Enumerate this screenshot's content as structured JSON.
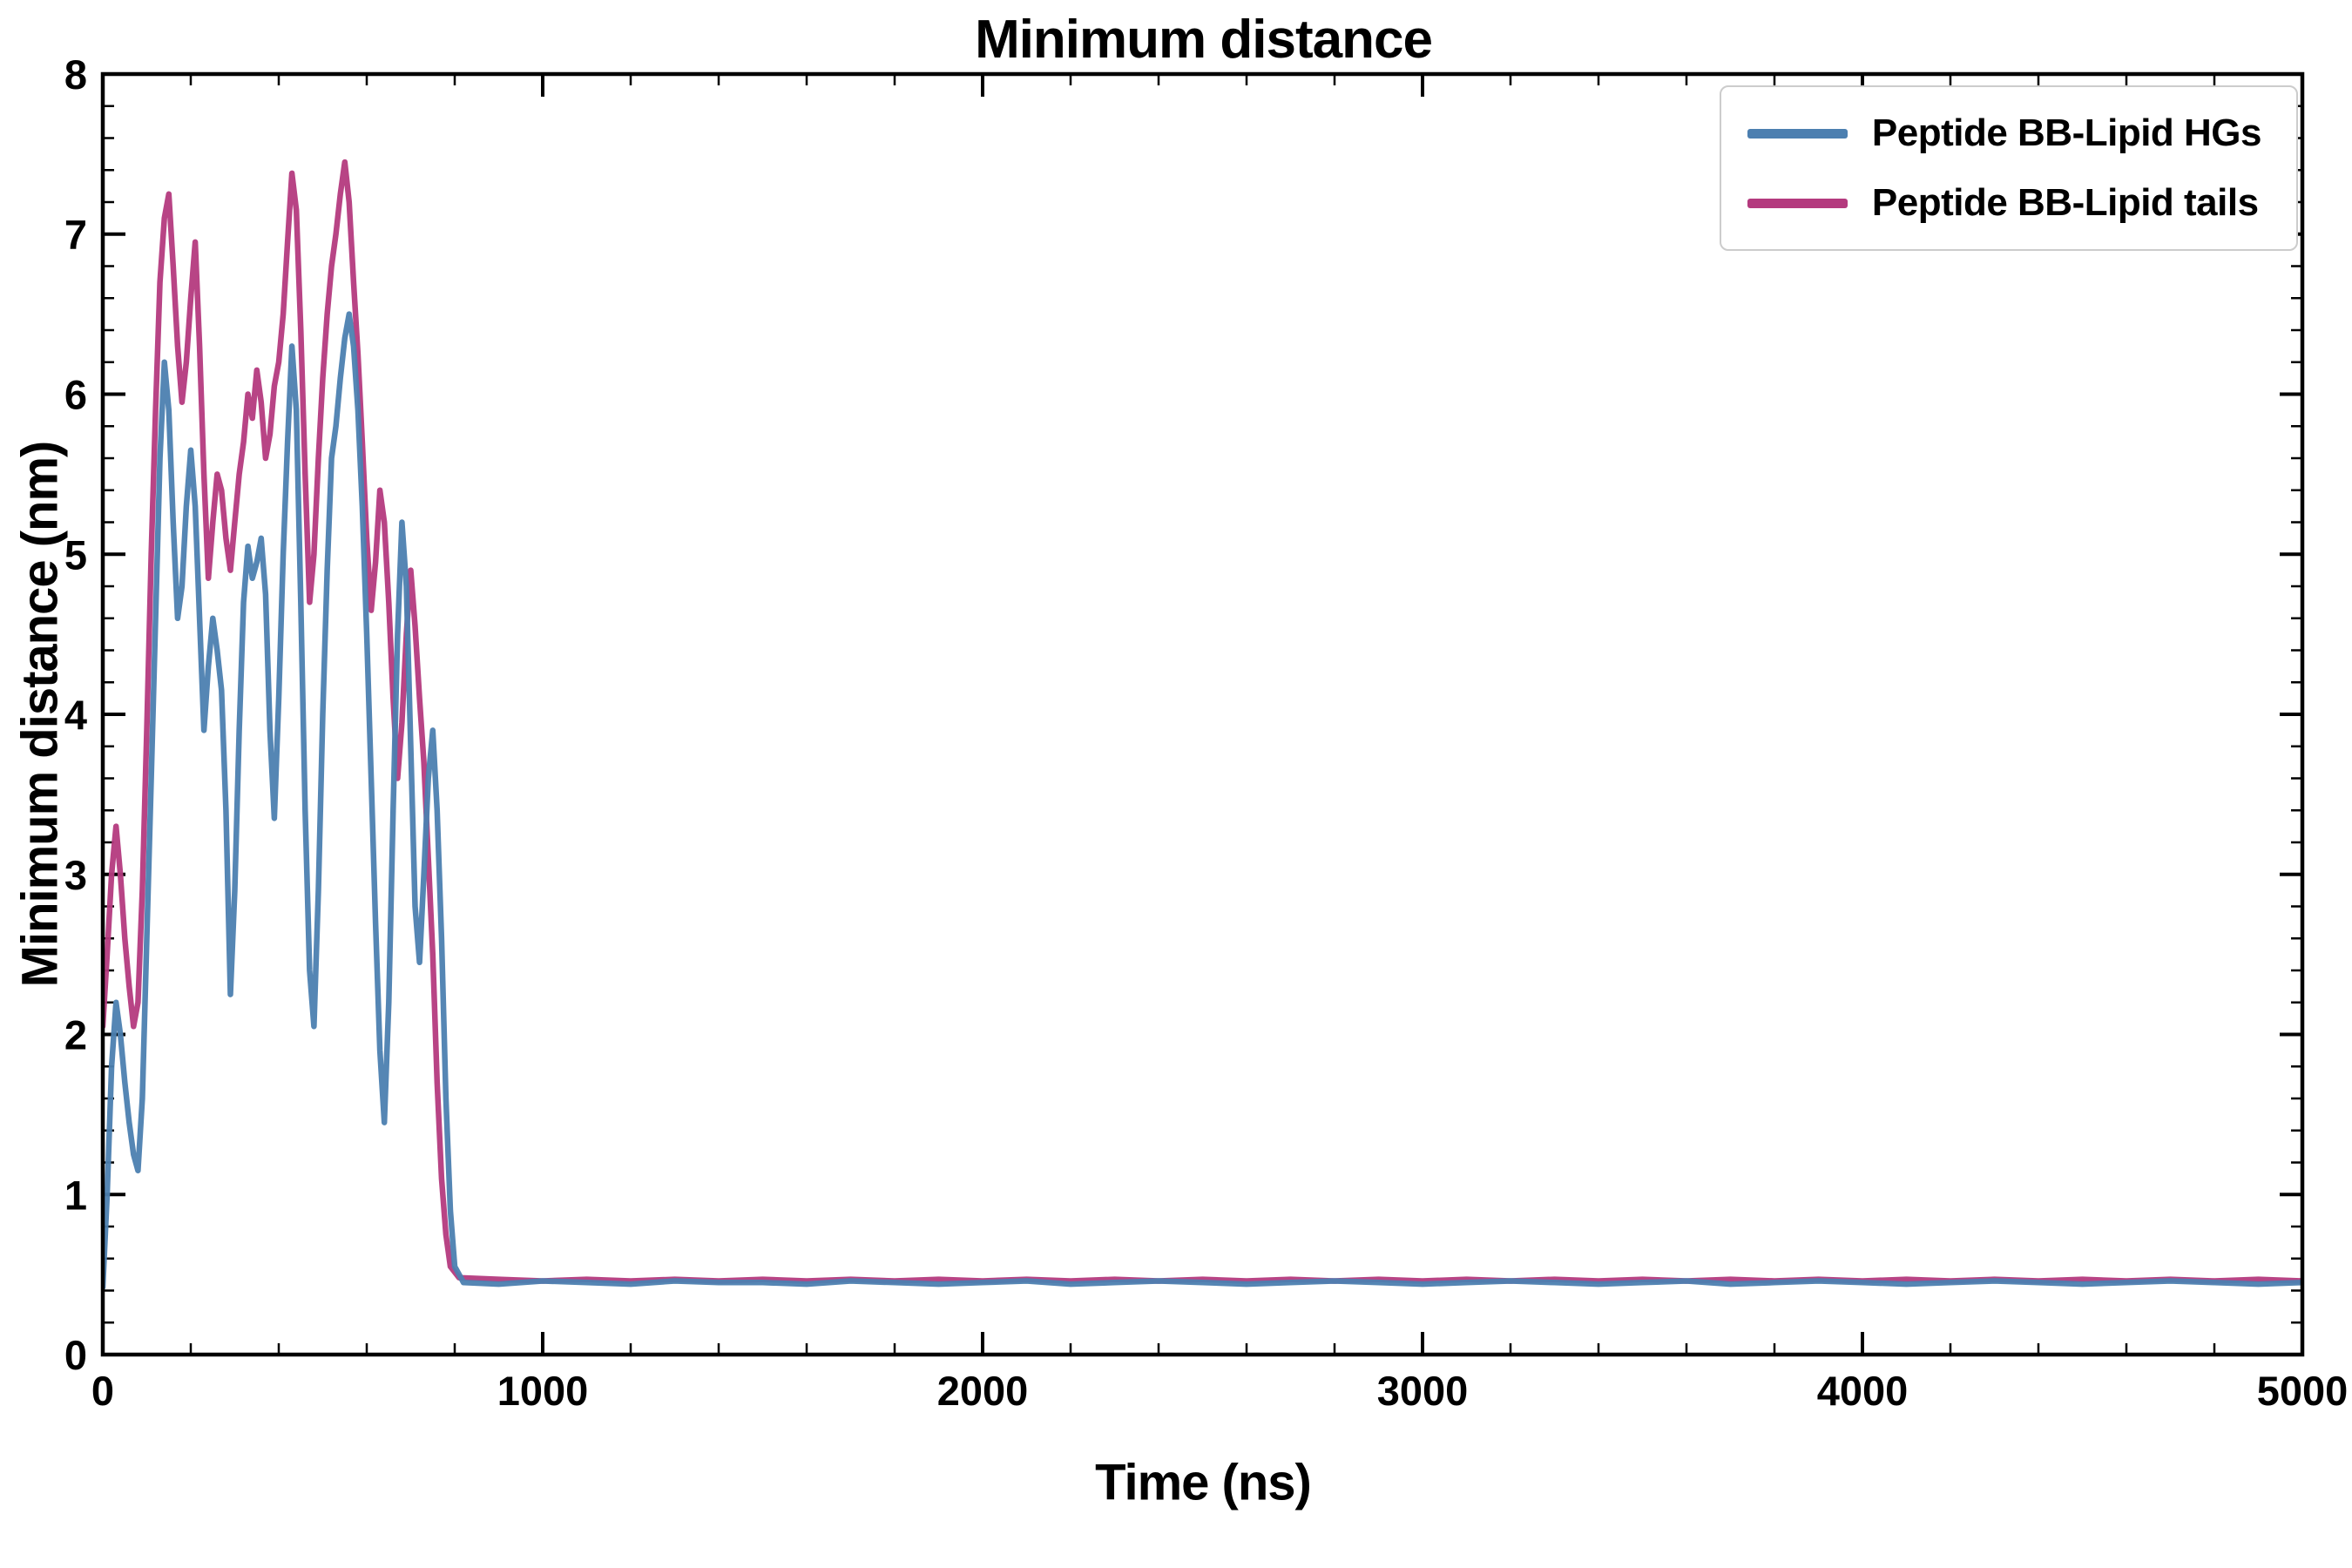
{
  "chart_data": {
    "type": "line",
    "title": "Minimum distance",
    "xlabel": "Time (ns)",
    "ylabel": "Minimum distance (nm)",
    "xlim": [
      0,
      5000
    ],
    "ylim": [
      0,
      8
    ],
    "x_major_ticks": [
      0,
      1000,
      2000,
      3000,
      4000,
      5000
    ],
    "y_major_ticks": [
      0,
      1,
      2,
      3,
      4,
      5,
      6,
      7,
      8
    ],
    "x_minor_step": 200,
    "y_minor_step": 0.2,
    "grid": false,
    "legend_position": "upper right",
    "frame_color": "#000000",
    "series": [
      {
        "name": "Peptide BB-Lipid HGs",
        "color": "#4c7fb0",
        "points": [
          [
            0,
            0.42
          ],
          [
            10,
            1.0
          ],
          [
            20,
            1.8
          ],
          [
            30,
            2.2
          ],
          [
            40,
            2.0
          ],
          [
            50,
            1.7
          ],
          [
            60,
            1.45
          ],
          [
            70,
            1.25
          ],
          [
            80,
            1.15
          ],
          [
            90,
            1.6
          ],
          [
            100,
            2.6
          ],
          [
            110,
            3.6
          ],
          [
            120,
            4.6
          ],
          [
            130,
            5.6
          ],
          [
            140,
            6.2
          ],
          [
            150,
            5.9
          ],
          [
            160,
            5.2
          ],
          [
            170,
            4.6
          ],
          [
            180,
            4.8
          ],
          [
            190,
            5.3
          ],
          [
            200,
            5.65
          ],
          [
            210,
            5.3
          ],
          [
            220,
            4.6
          ],
          [
            230,
            3.9
          ],
          [
            240,
            4.3
          ],
          [
            250,
            4.6
          ],
          [
            260,
            4.4
          ],
          [
            270,
            4.15
          ],
          [
            280,
            3.4
          ],
          [
            290,
            2.25
          ],
          [
            300,
            2.9
          ],
          [
            310,
            3.9
          ],
          [
            320,
            4.7
          ],
          [
            330,
            5.05
          ],
          [
            340,
            4.85
          ],
          [
            350,
            4.95
          ],
          [
            360,
            5.1
          ],
          [
            370,
            4.75
          ],
          [
            380,
            3.9
          ],
          [
            390,
            3.35
          ],
          [
            400,
            4.1
          ],
          [
            410,
            5.0
          ],
          [
            420,
            5.7
          ],
          [
            430,
            6.3
          ],
          [
            440,
            5.9
          ],
          [
            450,
            4.7
          ],
          [
            460,
            3.4
          ],
          [
            470,
            2.4
          ],
          [
            480,
            2.05
          ],
          [
            490,
            2.9
          ],
          [
            500,
            4.0
          ],
          [
            510,
            4.9
          ],
          [
            520,
            5.6
          ],
          [
            530,
            5.8
          ],
          [
            540,
            6.1
          ],
          [
            550,
            6.35
          ],
          [
            560,
            6.5
          ],
          [
            570,
            6.3
          ],
          [
            580,
            5.9
          ],
          [
            590,
            5.3
          ],
          [
            600,
            4.5
          ],
          [
            610,
            3.6
          ],
          [
            620,
            2.7
          ],
          [
            630,
            1.9
          ],
          [
            640,
            1.45
          ],
          [
            650,
            2.2
          ],
          [
            660,
            3.4
          ],
          [
            670,
            4.5
          ],
          [
            680,
            5.2
          ],
          [
            690,
            4.8
          ],
          [
            700,
            3.8
          ],
          [
            710,
            2.8
          ],
          [
            720,
            2.45
          ],
          [
            730,
            3.0
          ],
          [
            740,
            3.6
          ],
          [
            750,
            3.9
          ],
          [
            760,
            3.4
          ],
          [
            770,
            2.6
          ],
          [
            780,
            1.6
          ],
          [
            790,
            0.9
          ],
          [
            800,
            0.55
          ],
          [
            820,
            0.45
          ],
          [
            900,
            0.44
          ],
          [
            1000,
            0.46
          ],
          [
            1100,
            0.45
          ],
          [
            1200,
            0.44
          ],
          [
            1300,
            0.46
          ],
          [
            1400,
            0.45
          ],
          [
            1500,
            0.45
          ],
          [
            1600,
            0.44
          ],
          [
            1700,
            0.46
          ],
          [
            1800,
            0.45
          ],
          [
            1900,
            0.44
          ],
          [
            2000,
            0.45
          ],
          [
            2100,
            0.46
          ],
          [
            2200,
            0.44
          ],
          [
            2300,
            0.45
          ],
          [
            2400,
            0.46
          ],
          [
            2500,
            0.45
          ],
          [
            2600,
            0.44
          ],
          [
            2700,
            0.45
          ],
          [
            2800,
            0.46
          ],
          [
            2900,
            0.45
          ],
          [
            3000,
            0.44
          ],
          [
            3100,
            0.45
          ],
          [
            3200,
            0.46
          ],
          [
            3300,
            0.45
          ],
          [
            3400,
            0.44
          ],
          [
            3500,
            0.45
          ],
          [
            3600,
            0.46
          ],
          [
            3700,
            0.44
          ],
          [
            3800,
            0.45
          ],
          [
            3900,
            0.46
          ],
          [
            4000,
            0.45
          ],
          [
            4100,
            0.44
          ],
          [
            4200,
            0.45
          ],
          [
            4300,
            0.46
          ],
          [
            4400,
            0.45
          ],
          [
            4500,
            0.44
          ],
          [
            4600,
            0.45
          ],
          [
            4700,
            0.46
          ],
          [
            4800,
            0.45
          ],
          [
            4900,
            0.44
          ],
          [
            5000,
            0.45
          ]
        ]
      },
      {
        "name": "Peptide BB-Lipid tails",
        "color": "#b43a7e",
        "points": [
          [
            0,
            2.05
          ],
          [
            10,
            2.5
          ],
          [
            20,
            3.0
          ],
          [
            30,
            3.3
          ],
          [
            40,
            3.0
          ],
          [
            50,
            2.6
          ],
          [
            60,
            2.3
          ],
          [
            70,
            2.05
          ],
          [
            80,
            2.2
          ],
          [
            90,
            2.9
          ],
          [
            100,
            3.9
          ],
          [
            110,
            5.0
          ],
          [
            120,
            5.9
          ],
          [
            130,
            6.7
          ],
          [
            140,
            7.1
          ],
          [
            150,
            7.25
          ],
          [
            160,
            6.8
          ],
          [
            170,
            6.3
          ],
          [
            180,
            5.95
          ],
          [
            190,
            6.2
          ],
          [
            200,
            6.6
          ],
          [
            210,
            6.95
          ],
          [
            220,
            6.3
          ],
          [
            230,
            5.5
          ],
          [
            240,
            4.85
          ],
          [
            250,
            5.2
          ],
          [
            260,
            5.5
          ],
          [
            270,
            5.4
          ],
          [
            280,
            5.1
          ],
          [
            290,
            4.9
          ],
          [
            300,
            5.2
          ],
          [
            310,
            5.5
          ],
          [
            320,
            5.7
          ],
          [
            330,
            6.0
          ],
          [
            340,
            5.85
          ],
          [
            350,
            6.15
          ],
          [
            360,
            5.95
          ],
          [
            370,
            5.6
          ],
          [
            380,
            5.75
          ],
          [
            390,
            6.05
          ],
          [
            400,
            6.2
          ],
          [
            410,
            6.5
          ],
          [
            420,
            6.95
          ],
          [
            430,
            7.38
          ],
          [
            440,
            7.15
          ],
          [
            450,
            6.4
          ],
          [
            460,
            5.5
          ],
          [
            470,
            4.7
          ],
          [
            480,
            5.0
          ],
          [
            490,
            5.6
          ],
          [
            500,
            6.1
          ],
          [
            510,
            6.5
          ],
          [
            520,
            6.8
          ],
          [
            530,
            7.0
          ],
          [
            540,
            7.25
          ],
          [
            550,
            7.45
          ],
          [
            560,
            7.2
          ],
          [
            570,
            6.7
          ],
          [
            580,
            6.25
          ],
          [
            590,
            5.7
          ],
          [
            600,
            5.1
          ],
          [
            610,
            4.65
          ],
          [
            620,
            4.95
          ],
          [
            630,
            5.4
          ],
          [
            640,
            5.2
          ],
          [
            650,
            4.7
          ],
          [
            660,
            4.1
          ],
          [
            670,
            3.6
          ],
          [
            680,
            3.95
          ],
          [
            690,
            4.5
          ],
          [
            700,
            4.9
          ],
          [
            710,
            4.55
          ],
          [
            720,
            4.1
          ],
          [
            730,
            3.7
          ],
          [
            740,
            3.1
          ],
          [
            750,
            2.5
          ],
          [
            760,
            1.7
          ],
          [
            770,
            1.1
          ],
          [
            780,
            0.75
          ],
          [
            790,
            0.55
          ],
          [
            810,
            0.48
          ],
          [
            900,
            0.47
          ],
          [
            1000,
            0.46
          ],
          [
            1100,
            0.47
          ],
          [
            1200,
            0.46
          ],
          [
            1300,
            0.47
          ],
          [
            1400,
            0.46
          ],
          [
            1500,
            0.47
          ],
          [
            1600,
            0.46
          ],
          [
            1700,
            0.47
          ],
          [
            1800,
            0.46
          ],
          [
            1900,
            0.47
          ],
          [
            2000,
            0.46
          ],
          [
            2100,
            0.47
          ],
          [
            2200,
            0.46
          ],
          [
            2300,
            0.47
          ],
          [
            2400,
            0.46
          ],
          [
            2500,
            0.47
          ],
          [
            2600,
            0.46
          ],
          [
            2700,
            0.47
          ],
          [
            2800,
            0.46
          ],
          [
            2900,
            0.47
          ],
          [
            3000,
            0.46
          ],
          [
            3100,
            0.47
          ],
          [
            3200,
            0.46
          ],
          [
            3300,
            0.47
          ],
          [
            3400,
            0.46
          ],
          [
            3500,
            0.47
          ],
          [
            3600,
            0.46
          ],
          [
            3700,
            0.47
          ],
          [
            3800,
            0.46
          ],
          [
            3900,
            0.47
          ],
          [
            4000,
            0.46
          ],
          [
            4100,
            0.47
          ],
          [
            4200,
            0.46
          ],
          [
            4300,
            0.47
          ],
          [
            4400,
            0.46
          ],
          [
            4500,
            0.47
          ],
          [
            4600,
            0.46
          ],
          [
            4700,
            0.47
          ],
          [
            4800,
            0.46
          ],
          [
            4900,
            0.47
          ],
          [
            5000,
            0.46
          ]
        ]
      }
    ]
  }
}
